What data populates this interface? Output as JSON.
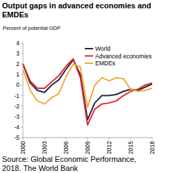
{
  "chart_data": {
    "type": "line",
    "title": "Output gaps in advanced economies and EMDEs",
    "y_label": "Percent of potential GDP",
    "source": "Source: Global Economic Performance, 2018. The World Bank",
    "x": [
      2000,
      2001,
      2002,
      2003,
      2004,
      2005,
      2006,
      2007,
      2008,
      2009,
      2010,
      2011,
      2012,
      2013,
      2014,
      2015,
      2016,
      2017,
      2018
    ],
    "xlim": [
      2000,
      2018
    ],
    "xticks": [
      2000,
      2003,
      2006,
      2009,
      2012,
      2015,
      2018
    ],
    "ylim": [
      -5,
      4
    ],
    "yticks": [
      -5,
      -4,
      -3,
      -2,
      -1,
      0,
      1,
      2,
      3,
      4
    ],
    "grid": false,
    "legend": "top-right",
    "series": [
      {
        "name": "World",
        "color": "#1f2a44",
        "values": [
          2.0,
          0.2,
          -0.5,
          -0.7,
          0.0,
          0.5,
          1.5,
          2.4,
          1.0,
          -3.3,
          -1.7,
          -1.0,
          -1.0,
          -0.9,
          -0.6,
          -0.4,
          -0.5,
          -0.2,
          0.1
        ]
      },
      {
        "name": "Advanced economies",
        "color": "#e0262b",
        "values": [
          2.0,
          0.4,
          -0.3,
          -0.3,
          0.3,
          0.9,
          1.8,
          2.5,
          0.7,
          -3.8,
          -2.3,
          -1.8,
          -1.7,
          -1.5,
          -1.0,
          -0.6,
          -0.4,
          0.0,
          0.2
        ]
      },
      {
        "name": "EMDEs",
        "color": "#f2a93b",
        "values": [
          1.5,
          -0.5,
          -1.5,
          -1.8,
          -1.2,
          -0.8,
          0.8,
          2.0,
          1.7,
          -2.1,
          0.0,
          0.7,
          0.4,
          0.7,
          0.6,
          -0.4,
          -0.6,
          -0.5,
          -0.3
        ]
      }
    ]
  }
}
